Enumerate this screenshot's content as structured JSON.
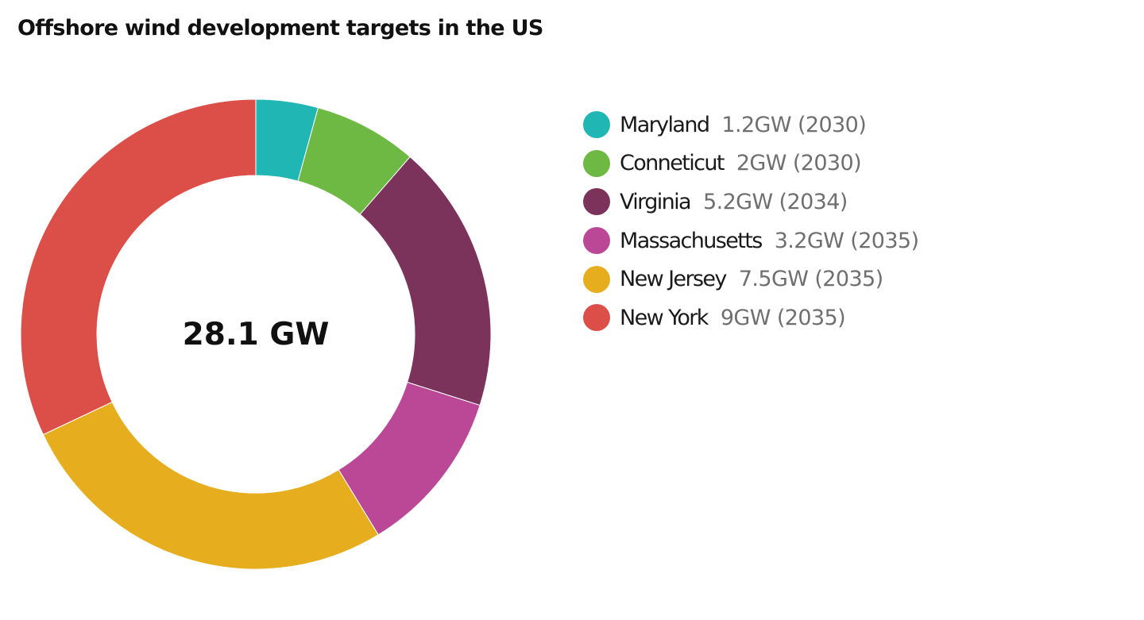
{
  "chart_data": {
    "type": "pie",
    "donut": true,
    "title": "Offshore wind development targets in the US",
    "center_label": "28.1 GW",
    "unit": "GW",
    "legend_position": "right",
    "slices": [
      {
        "name": "Maryland",
        "value": 1.2,
        "label": "1.2GW (2030)",
        "color": "#1fb6b4"
      },
      {
        "name": "Conneticut",
        "value": 2,
        "label": "2GW (2030)",
        "color": "#6db944"
      },
      {
        "name": "Virginia",
        "value": 5.2,
        "label": "5.2GW (2034)",
        "color": "#7b335c"
      },
      {
        "name": "Massachusetts",
        "value": 3.2,
        "label": "3.2GW (2035)",
        "color": "#bb4896"
      },
      {
        "name": "New Jersey",
        "value": 7.5,
        "label": "7.5GW (2035)",
        "color": "#e6ae1f"
      },
      {
        "name": "New York",
        "value": 9,
        "label": "9GW (2035)",
        "color": "#dc4f48"
      }
    ],
    "slice_order_in_ring": [
      "Maryland",
      "Conneticut",
      "Virginia",
      "Massachusetts",
      "New Jersey",
      "New York"
    ]
  }
}
